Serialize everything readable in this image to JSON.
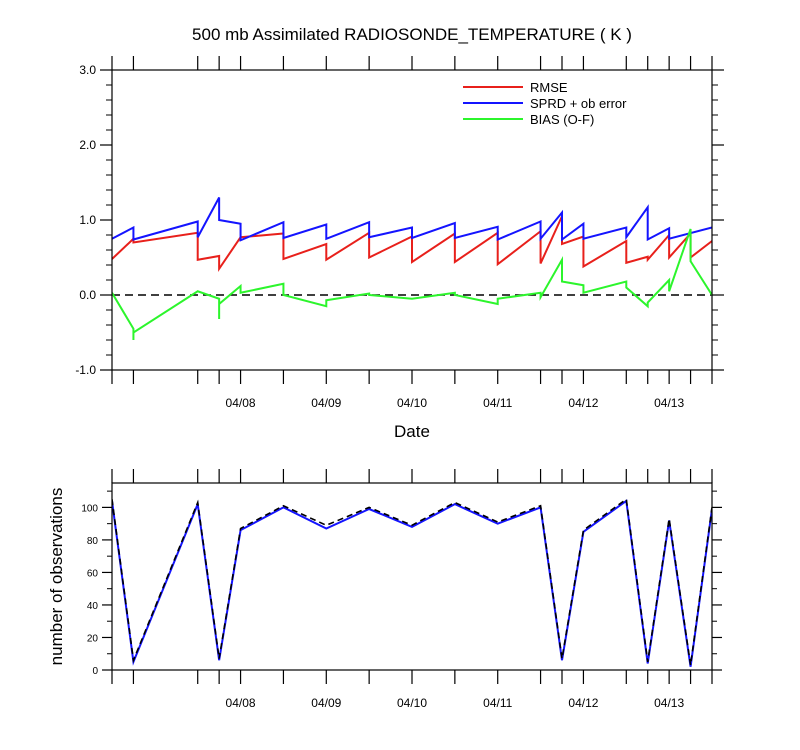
{
  "chart_data": [
    {
      "type": "line",
      "title": "500 mb Assimilated RADIOSONDE_TEMPERATURE ( K )",
      "xlabel": "Date",
      "ylabel": "",
      "ylim": [
        -1.0,
        3.0
      ],
      "yticks": [
        -1.0,
        0.0,
        1.0,
        2.0,
        3.0
      ],
      "ytick_labels": [
        "-1.0",
        "0.0",
        "1.0",
        "2.0",
        "3.0"
      ],
      "xlim": [
        0,
        14
      ],
      "x_tick_positions": [
        3,
        5,
        7,
        9,
        11,
        13
      ],
      "x_tick_labels": [
        "04/08",
        "04/09",
        "04/10",
        "04/11",
        "04/12",
        "04/13"
      ],
      "legend_position": "top-right",
      "reference_line": {
        "y": 0.0,
        "style": "dashed",
        "color": "#000000"
      },
      "series": [
        {
          "name": "RMSE",
          "color": "#e8201b",
          "points": [
            [
              0,
              0.48
            ],
            [
              0.5,
              0.75
            ],
            [
              0.5,
              0.7
            ],
            [
              2,
              0.83
            ],
            [
              2,
              0.47
            ],
            [
              2.5,
              0.52
            ],
            [
              2.5,
              0.35
            ],
            [
              3,
              0.77
            ],
            [
              4,
              0.82
            ],
            [
              4,
              0.48
            ],
            [
              5,
              0.68
            ],
            [
              5,
              0.47
            ],
            [
              6,
              0.83
            ],
            [
              6,
              0.5
            ],
            [
              7,
              0.78
            ],
            [
              7,
              0.44
            ],
            [
              8,
              0.82
            ],
            [
              8,
              0.44
            ],
            [
              9,
              0.83
            ],
            [
              9,
              0.41
            ],
            [
              10,
              0.85
            ],
            [
              10,
              0.42
            ],
            [
              10.5,
              1.05
            ],
            [
              10.5,
              0.68
            ],
            [
              11,
              0.78
            ],
            [
              11,
              0.38
            ],
            [
              12,
              0.72
            ],
            [
              12,
              0.43
            ],
            [
              12.5,
              0.51
            ],
            [
              12.5,
              0.47
            ],
            [
              13,
              0.8
            ],
            [
              13,
              0.5
            ],
            [
              13.5,
              0.82
            ],
            [
              13.5,
              0.5
            ],
            [
              14,
              0.72
            ]
          ]
        },
        {
          "name": "SPRD + ob error",
          "color": "#1414ff",
          "points": [
            [
              0,
              0.75
            ],
            [
              0.5,
              0.9
            ],
            [
              0.5,
              0.74
            ],
            [
              2,
              0.98
            ],
            [
              2,
              0.77
            ],
            [
              2.5,
              1.3
            ],
            [
              2.5,
              1.0
            ],
            [
              3,
              0.95
            ],
            [
              3,
              0.73
            ],
            [
              4,
              0.97
            ],
            [
              4,
              0.76
            ],
            [
              5,
              0.94
            ],
            [
              5,
              0.75
            ],
            [
              6,
              0.97
            ],
            [
              6,
              0.77
            ],
            [
              7,
              0.9
            ],
            [
              7,
              0.76
            ],
            [
              8,
              0.96
            ],
            [
              8,
              0.76
            ],
            [
              9,
              0.91
            ],
            [
              9,
              0.74
            ],
            [
              10,
              0.98
            ],
            [
              10,
              0.75
            ],
            [
              10.5,
              1.1
            ],
            [
              10.5,
              0.74
            ],
            [
              11,
              0.95
            ],
            [
              11,
              0.75
            ],
            [
              12,
              0.9
            ],
            [
              12,
              0.77
            ],
            [
              12.5,
              1.17
            ],
            [
              12.5,
              0.74
            ],
            [
              13,
              0.89
            ],
            [
              13,
              0.75
            ],
            [
              14,
              0.9
            ]
          ]
        },
        {
          "name": "BIAS (O-F)",
          "color": "#2cf52c",
          "points": [
            [
              0,
              0.03
            ],
            [
              0.5,
              -0.45
            ],
            [
              0.5,
              -0.6
            ],
            [
              0.5,
              -0.5
            ],
            [
              2,
              0.05
            ],
            [
              2.5,
              -0.05
            ],
            [
              2.5,
              -0.32
            ],
            [
              2.5,
              -0.12
            ],
            [
              3,
              0.12
            ],
            [
              3,
              0.03
            ],
            [
              4,
              0.15
            ],
            [
              4,
              0.0
            ],
            [
              5,
              -0.15
            ],
            [
              5,
              -0.07
            ],
            [
              6,
              0.02
            ],
            [
              6,
              0.0
            ],
            [
              7,
              -0.05
            ],
            [
              7,
              -0.05
            ],
            [
              8,
              0.03
            ],
            [
              8,
              0.0
            ],
            [
              9,
              -0.12
            ],
            [
              9,
              -0.05
            ],
            [
              10,
              0.03
            ],
            [
              10,
              -0.03
            ],
            [
              10.5,
              0.47
            ],
            [
              10.5,
              0.18
            ],
            [
              11,
              0.13
            ],
            [
              11,
              0.03
            ],
            [
              12,
              0.18
            ],
            [
              12,
              0.1
            ],
            [
              12.5,
              -0.15
            ],
            [
              12.5,
              -0.1
            ],
            [
              13,
              0.2
            ],
            [
              13,
              0.05
            ],
            [
              13.5,
              0.88
            ],
            [
              13.5,
              0.45
            ],
            [
              14,
              0.0
            ]
          ]
        }
      ]
    },
    {
      "type": "line",
      "title": "",
      "xlabel": "",
      "ylabel": "number of observations",
      "ylim": [
        0,
        115
      ],
      "yticks": [
        0,
        20,
        40,
        60,
        80,
        100
      ],
      "ytick_labels": [
        "0",
        "20",
        "40",
        "60",
        "80",
        "100"
      ],
      "xlim": [
        0,
        14
      ],
      "x_tick_positions": [
        3,
        5,
        7,
        9,
        11,
        13
      ],
      "x_tick_labels": [
        "04/08",
        "04/09",
        "04/10",
        "04/11",
        "04/12",
        "04/13"
      ],
      "series": [
        {
          "color": "#1414ff",
          "style": "solid",
          "points": [
            [
              0,
              104
            ],
            [
              0.5,
              5
            ],
            [
              2,
              102
            ],
            [
              2.5,
              6
            ],
            [
              3,
              86
            ],
            [
              4,
              100
            ],
            [
              5,
              87
            ],
            [
              6,
              99
            ],
            [
              7,
              88
            ],
            [
              8,
              102
            ],
            [
              9,
              90
            ],
            [
              10,
              100
            ],
            [
              10.5,
              6
            ],
            [
              11,
              85
            ],
            [
              12,
              104
            ],
            [
              12.5,
              4
            ],
            [
              13,
              92
            ],
            [
              13.5,
              2
            ],
            [
              14,
              99
            ]
          ]
        },
        {
          "color": "#000000",
          "style": "dashed",
          "points": [
            [
              0,
              105
            ],
            [
              0.5,
              6
            ],
            [
              2,
              103
            ],
            [
              2.5,
              7
            ],
            [
              3,
              87
            ],
            [
              4,
              101
            ],
            [
              5,
              89
            ],
            [
              6,
              100
            ],
            [
              7,
              89
            ],
            [
              8,
              103
            ],
            [
              9,
              91
            ],
            [
              10,
              101
            ],
            [
              10.5,
              7
            ],
            [
              11,
              86
            ],
            [
              12,
              105
            ],
            [
              12.5,
              5
            ],
            [
              13,
              93
            ],
            [
              13.5,
              3
            ],
            [
              14,
              100
            ]
          ]
        }
      ]
    }
  ]
}
